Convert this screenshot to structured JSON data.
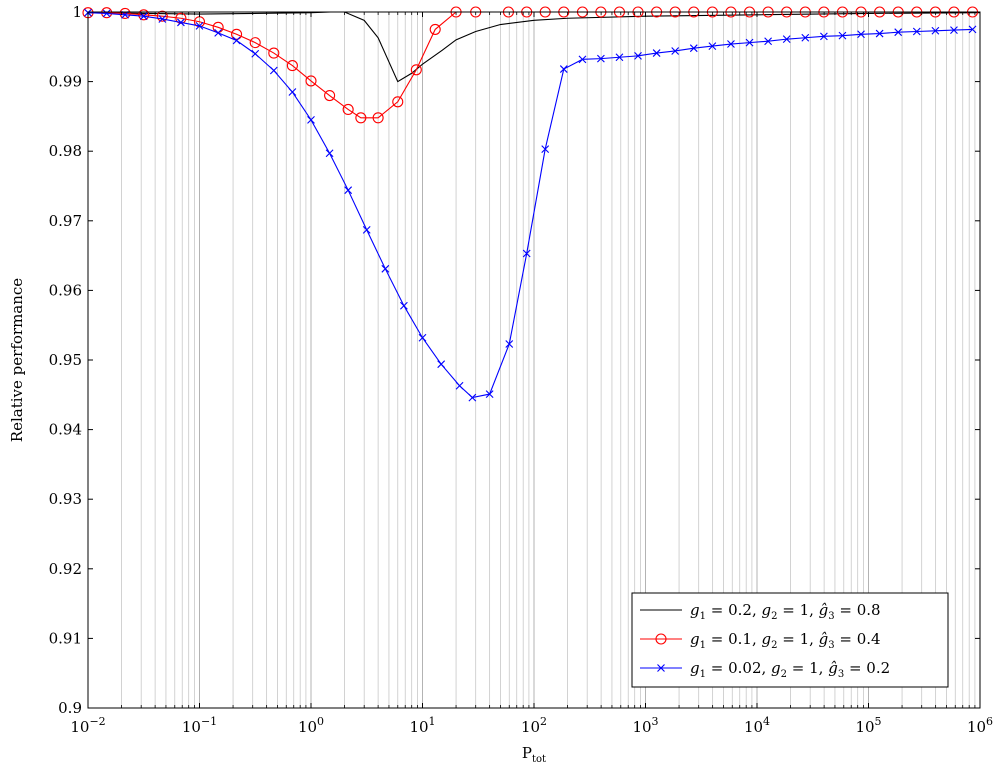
{
  "chart_data": {
    "type": "line",
    "title": "",
    "xlabel": "P_tot",
    "xlabel_main": "P",
    "xlabel_sub": "tot",
    "ylabel": "Relative performance",
    "xscale": "log",
    "xlim": [
      0.01,
      1000000
    ],
    "ylim": [
      0.9,
      1.0
    ],
    "grid": true,
    "legend_position": "bottom-right",
    "x_ticks": [
      {
        "value": 0.01,
        "base": "10",
        "exp": "−2"
      },
      {
        "value": 0.1,
        "base": "10",
        "exp": "−1"
      },
      {
        "value": 1,
        "base": "10",
        "exp": "0"
      },
      {
        "value": 10,
        "base": "10",
        "exp": "1"
      },
      {
        "value": 100,
        "base": "10",
        "exp": "2"
      },
      {
        "value": 1000,
        "base": "10",
        "exp": "3"
      },
      {
        "value": 10000,
        "base": "10",
        "exp": "4"
      },
      {
        "value": 100000,
        "base": "10",
        "exp": "5"
      },
      {
        "value": 1000000,
        "base": "10",
        "exp": "6"
      }
    ],
    "y_ticks": [
      "0.9",
      "0.91",
      "0.92",
      "0.93",
      "0.94",
      "0.95",
      "0.96",
      "0.97",
      "0.98",
      "0.99",
      "1"
    ],
    "series": [
      {
        "name": "g1 = 0.2, g2 = 1, ĝ3 = 0.8",
        "name_parts": [
          "g",
          "1",
          " = 0.2, ",
          "g",
          "2",
          " = 1, ",
          "ĝ",
          "3",
          " = 0.8"
        ],
        "color": "#000000",
        "marker": "none",
        "x": [
          0.01,
          0.1,
          1,
          1.5,
          2,
          3,
          4,
          6,
          8,
          10,
          15,
          20,
          30,
          50,
          100,
          200,
          1000,
          10000,
          100000,
          1000000
        ],
        "y": [
          0.9999,
          0.9997,
          0.9999,
          1.0,
          1.0,
          0.9988,
          0.9963,
          0.99,
          0.9912,
          0.9925,
          0.9945,
          0.996,
          0.9972,
          0.9982,
          0.9988,
          0.9991,
          0.9994,
          0.9996,
          0.9998,
          0.9999
        ]
      },
      {
        "name": "g1 = 0.1, g2 = 1, ĝ3 = 0.4",
        "name_parts": [
          "g",
          "1",
          " = 0.1, ",
          "g",
          "2",
          " = 1, ",
          "ĝ",
          "3",
          " = 0.4"
        ],
        "color": "#ff0000",
        "marker": "circle",
        "x": [
          0.01,
          0.0147,
          0.0215,
          0.0316,
          0.0464,
          0.0681,
          0.1,
          0.147,
          0.215,
          0.316,
          0.464,
          0.681,
          1,
          1.468,
          2.154,
          2.8,
          4.0,
          6.0,
          8.8,
          13,
          20,
          30,
          59,
          86,
          126,
          185,
          272,
          398,
          584,
          857,
          1258,
          1846,
          2710,
          3978,
          5839,
          8570,
          12580,
          18465,
          27100,
          39800,
          58400,
          85700,
          125800,
          184600,
          271000,
          398000,
          584000,
          857000
        ],
        "y": [
          0.9999,
          0.9999,
          0.9998,
          0.9996,
          0.9994,
          0.9991,
          0.9986,
          0.9978,
          0.9968,
          0.9956,
          0.9941,
          0.9923,
          0.9901,
          0.988,
          0.986,
          0.9848,
          0.9848,
          0.9871,
          0.9917,
          0.9975,
          1.0,
          1.0,
          1.0,
          1.0,
          1.0,
          1.0,
          1.0,
          1.0,
          1.0,
          1.0,
          1.0,
          1.0,
          1.0,
          1.0,
          1.0,
          1.0,
          1.0,
          1.0,
          1.0,
          1.0,
          1.0,
          1.0,
          1.0,
          1.0,
          1.0,
          1.0,
          1.0,
          1.0
        ]
      },
      {
        "name": "g1 = 0.02, g2 = 1, ĝ3 = 0.2",
        "name_parts": [
          "g",
          "1",
          " = 0.02, ",
          "g",
          "2",
          " = 1, ",
          "ĝ",
          "3",
          " = 0.2"
        ],
        "color": "#0000ff",
        "marker": "x",
        "x": [
          0.01,
          0.0147,
          0.0215,
          0.0316,
          0.0464,
          0.0681,
          0.1,
          0.147,
          0.215,
          0.316,
          0.464,
          0.681,
          1,
          1.468,
          2.154,
          3.16,
          4.64,
          6.81,
          10,
          14.7,
          21.5,
          28,
          40,
          60,
          86,
          126,
          185,
          272,
          398,
          584,
          857,
          1258,
          1846,
          2710,
          3978,
          5839,
          8570,
          12580,
          18465,
          27100,
          39800,
          58400,
          85700,
          125800,
          184600,
          271000,
          398000,
          584000,
          857000
        ],
        "y": [
          0.9999,
          0.9998,
          0.9996,
          0.9994,
          0.999,
          0.9985,
          0.998,
          0.997,
          0.9959,
          0.994,
          0.9916,
          0.9885,
          0.9845,
          0.9797,
          0.9744,
          0.9687,
          0.9631,
          0.9578,
          0.9532,
          0.9494,
          0.9463,
          0.9446,
          0.9451,
          0.9523,
          0.9653,
          0.9803,
          0.9918,
          0.9932,
          0.9933,
          0.9935,
          0.9937,
          0.9941,
          0.9944,
          0.9948,
          0.9951,
          0.9954,
          0.9956,
          0.9958,
          0.9961,
          0.9963,
          0.9965,
          0.9966,
          0.9968,
          0.9969,
          0.9971,
          0.9972,
          0.9973,
          0.9974,
          0.9975
        ]
      }
    ]
  }
}
